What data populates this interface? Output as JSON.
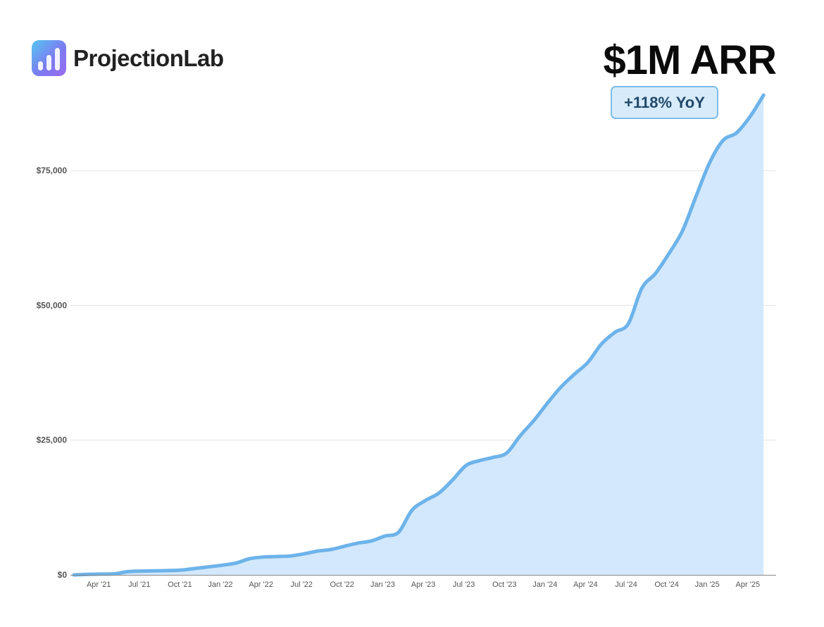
{
  "brand": {
    "name": "ProjectionLab",
    "logo_icon": "bar-chart-icon",
    "logo_gradient": [
      "#56c6f3",
      "#7b7cf0",
      "#9a6cf0"
    ]
  },
  "headline": "$1M ARR",
  "badge": "+118% YoY",
  "colors": {
    "line": "#6db3ea",
    "area": "#d3e8fc",
    "grid": "#e3e3ea",
    "axis": "#888888"
  },
  "chart_data": {
    "type": "area",
    "title": "",
    "xlabel": "",
    "ylabel": "",
    "ylim": [
      0,
      89000
    ],
    "y_ticks": [
      0,
      25000,
      50000,
      75000
    ],
    "y_tick_labels": [
      "$0",
      "$25,000",
      "$50,000",
      "$75,000"
    ],
    "grid": true,
    "legend": "none",
    "x_tick_labels": [
      "Apr '21",
      "Jul '21",
      "Oct '21",
      "Jan '22",
      "Apr '22",
      "Jul '22",
      "Oct '22",
      "Jan '23",
      "Apr '23",
      "Jul '23",
      "Oct '23",
      "Jan '24",
      "Apr '24",
      "Jul '24",
      "Oct '24",
      "Jan '25",
      "Apr '25"
    ],
    "series": [
      {
        "x": [
          "Mar '21",
          "Apr '21",
          "May '21",
          "Jun '21",
          "Jul '21",
          "Aug '21",
          "Sep '21",
          "Oct '21",
          "Nov '21",
          "Dec '21",
          "Jan '22",
          "Feb '22",
          "Mar '22",
          "Apr '22",
          "May '22",
          "Jun '22",
          "Jul '22",
          "Aug '22",
          "Sep '22",
          "Oct '22",
          "Nov '22",
          "Dec '22",
          "Jan '23",
          "Feb '23",
          "Mar '23",
          "Apr '23",
          "May '23",
          "Jun '23",
          "Jul '23",
          "Aug '23",
          "Sep '23",
          "Oct '23",
          "Nov '23",
          "Dec '23",
          "Jan '24",
          "Feb '24",
          "Mar '24",
          "Apr '24",
          "May '24",
          "Jun '24",
          "Jul '24",
          "Aug '24",
          "Sep '24",
          "Oct '24",
          "Nov '24",
          "Dec '24",
          "Jan '25",
          "Feb '25",
          "Mar '25",
          "Apr '25",
          "May '25",
          "Jun '25"
        ],
        "values": [
          0,
          100,
          150,
          200,
          600,
          700,
          750,
          800,
          900,
          1200,
          1500,
          1800,
          2200,
          3000,
          3300,
          3400,
          3500,
          3900,
          4400,
          4700,
          5300,
          5900,
          6300,
          7200,
          7900,
          12000,
          13800,
          15200,
          17600,
          20300,
          21200,
          21800,
          22600,
          25800,
          28600,
          31800,
          34800,
          37200,
          39400,
          42800,
          45000,
          46600,
          53200,
          55900,
          59600,
          63800,
          70200,
          76400,
          80600,
          82000,
          85000,
          89000
        ]
      }
    ]
  }
}
